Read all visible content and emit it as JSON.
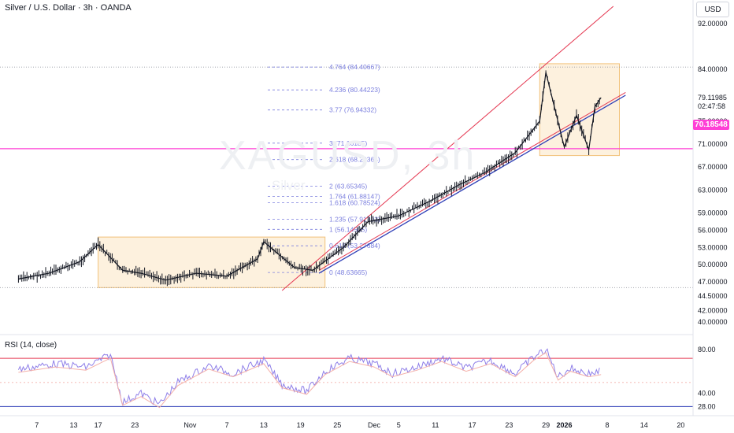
{
  "header": {
    "symbol_title": "Silver / U.S. Dollar · 3h · OANDA",
    "currency": "USD"
  },
  "watermark": {
    "ticker": "XAGUSD, 3h",
    "name": "Silver"
  },
  "colors": {
    "candle": "#131722",
    "channel_red": "#e53a53",
    "channel_blue": "#2f3fb7",
    "fib": "#7b7fde",
    "box_fill": "#fdf1de",
    "box_border": "#f2c27a",
    "level_magenta": "#ff3fd6",
    "rsi_line": "#8e7ee8",
    "rsi_ma": "#f4b0a9"
  },
  "chart_data": {
    "type": "line",
    "title": "Silver / U.S. Dollar · 3h · OANDA",
    "y_axis": {
      "ticks": [
        "92.00000",
        "84.00000",
        "79.11985",
        "02:47:58",
        "75.00000",
        "71.00000",
        "67.00000",
        "63.00000",
        "59.00000",
        "56.00000",
        "53.00000",
        "50.00000",
        "47.00000",
        "44.50000",
        "42.00000",
        "40.00000"
      ],
      "ylim": [
        38.5,
        95
      ]
    },
    "x_axis": {
      "ticks": [
        "7",
        "13",
        "17",
        "23",
        "Nov",
        "7",
        "13",
        "19",
        "25",
        "Dec",
        "5",
        "11",
        "17",
        "23",
        "29",
        "2026",
        "8",
        "14",
        "20"
      ]
    },
    "price_series": {
      "name": "",
      "x": [
        "2025-10-04",
        "2025-10-09",
        "2025-10-14",
        "2025-10-17",
        "2025-10-21",
        "2025-10-24",
        "2025-10-28",
        "2025-11-02",
        "2025-11-07",
        "2025-11-12",
        "2025-11-13",
        "2025-11-18",
        "2025-11-21",
        "2025-11-26",
        "2025-11-30",
        "2025-12-05",
        "2025-12-10",
        "2025-12-15",
        "2025-12-19",
        "2025-12-24",
        "2025-12-28",
        "2025-12-29",
        "2026-01-01",
        "2026-01-03",
        "2026-01-05",
        "2026-01-06",
        "2026-01-07"
      ],
      "y": [
        47.5,
        48.5,
        50.5,
        53.5,
        49.0,
        48.5,
        47.3,
        48.5,
        48.0,
        51.0,
        54.0,
        49.5,
        49.0,
        53.0,
        57.5,
        58.5,
        61.0,
        64.0,
        66.0,
        69.5,
        75.0,
        83.5,
        70.5,
        76.0,
        70.0,
        77.5,
        79.1
      ]
    },
    "last_price": {
      "label": "70.18548",
      "value": 70.18548
    },
    "horizontal_levels": [
      84.40667,
      70.18548,
      46.0
    ],
    "fibonacci": {
      "levels": [
        {
          "label": "4.764 (84.40667)",
          "value": 84.40667
        },
        {
          "label": "4.236 (80.44223)",
          "value": 80.44223
        },
        {
          "label": "3.77 (76.94332)",
          "value": 76.94332
        },
        {
          "label": "3 (71.16185)",
          "value": 71.16185
        },
        {
          "label": "2.618 (68.29364)",
          "value": 68.29364
        },
        {
          "label": "2 (63.65345)",
          "value": 63.65345
        },
        {
          "label": "1.764 (61.88147)",
          "value": 61.88147
        },
        {
          "label": "1.618 (60.78524)",
          "value": 60.78524
        },
        {
          "label": "1.235 (57.91703)",
          "value": 57.91703
        },
        {
          "label": "1 (56.14505)",
          "value": 56.14505
        },
        {
          "label": "0.618 (53.27684)",
          "value": 53.27684
        },
        {
          "label": "0 (48.63665)",
          "value": 48.63665
        }
      ]
    },
    "channel": {
      "upper": [
        {
          "x": "2025-11-16",
          "y": 45.5
        },
        {
          "x": "2026-01-09",
          "y": 95.0
        }
      ],
      "middle": [
        {
          "x": "2025-11-16",
          "y": 54.5
        },
        {
          "x": "2026-01-09",
          "y": 95.0
        }
      ],
      "lower": [
        {
          "x": "2025-11-22",
          "y": 49.0
        },
        {
          "x": "2026-01-11",
          "y": 80.0
        }
      ],
      "lower_blue": [
        {
          "x": "2025-11-22",
          "y": 48.5
        },
        {
          "x": "2026-01-11",
          "y": 79.5
        }
      ]
    },
    "boxes": [
      {
        "x0": "2025-10-17",
        "x1": "2025-11-23",
        "y0": 46.0,
        "y1": 54.8
      },
      {
        "x0": "2025-12-28",
        "x1": "2026-01-10",
        "y0": 69.0,
        "y1": 85.0
      }
    ],
    "rsi": {
      "title": "RSI (14, close)",
      "ticks": [
        "80.00",
        "40.00",
        "28.00"
      ],
      "ylim": [
        24,
        90
      ],
      "upper_band": 72,
      "lower_band": 28,
      "mid_band": 50,
      "x": [
        "2025-10-04",
        "2025-10-10",
        "2025-10-15",
        "2025-10-19",
        "2025-10-21",
        "2025-10-24",
        "2025-10-27",
        "2025-10-30",
        "2025-11-04",
        "2025-11-08",
        "2025-11-13",
        "2025-11-16",
        "2025-11-20",
        "2025-11-23",
        "2025-11-27",
        "2025-12-01",
        "2025-12-04",
        "2025-12-08",
        "2025-12-12",
        "2025-12-16",
        "2025-12-20",
        "2025-12-24",
        "2025-12-27",
        "2025-12-29",
        "2025-12-31",
        "2026-01-02",
        "2026-01-05",
        "2026-01-07"
      ],
      "y": [
        62,
        67,
        64,
        75,
        32,
        40,
        30,
        50,
        65,
        58,
        70,
        48,
        42,
        60,
        72,
        67,
        58,
        64,
        72,
        63,
        70,
        58,
        73,
        80,
        55,
        63,
        58,
        60
      ]
    }
  }
}
